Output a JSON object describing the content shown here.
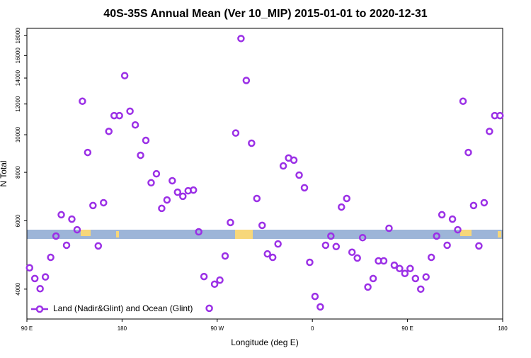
{
  "chart_data": {
    "type": "scatter",
    "title": "40S-35S Annual Mean (Ver 10_MIP)   2015-01-01 to 2020-12-31",
    "xlabel": "Longitude (deg E)",
    "ylabel": "N Total",
    "x": [
      92.5,
      97.5,
      102.5,
      107.5,
      112.5,
      117.5,
      122.5,
      127.5,
      132.5,
      137.5,
      142.5,
      147.5,
      152.5,
      157.5,
      162.5,
      167.5,
      172.5,
      177.5,
      182.5,
      187.5,
      192.5,
      197.5,
      202.5,
      207.5,
      212.5,
      217.5,
      222.5,
      227.5,
      232.5,
      237.5,
      242.5,
      247.5,
      252.5,
      257.5,
      262.5,
      267.5,
      272.5,
      277.5,
      282.5,
      287.5,
      292.5,
      297.5,
      302.5,
      307.5,
      312.5,
      317.5,
      322.5,
      327.5,
      332.5,
      337.5,
      342.5,
      347.5,
      352.5,
      357.5,
      362.5,
      367.5,
      372.5,
      377.5,
      382.5,
      387.5,
      392.5,
      397.5,
      402.5,
      407.5,
      412.5,
      417.5,
      422.5,
      427.5,
      432.5,
      437.5,
      442.5,
      447.5,
      452.5,
      457.5,
      462.5,
      467.5,
      472.5,
      477.5,
      482.5,
      487.5,
      492.5,
      497.5,
      502.5,
      507.5,
      512.5,
      517.5,
      522.5,
      527.5,
      532.5,
      537.5
    ],
    "series": [
      {
        "name": "Land (Nadir&Glint) and Ocean (Glint)",
        "color": "#9b30e6",
        "values": [
          4540,
          4260,
          4010,
          4300,
          4830,
          5480,
          6220,
          5190,
          6060,
          5690,
          12200,
          9000,
          6570,
          5170,
          6680,
          10200,
          11200,
          11200,
          14200,
          11500,
          10600,
          8850,
          9670,
          7520,
          7930,
          6460,
          6790,
          7610,
          7110,
          6940,
          7170,
          7200,
          5620,
          4310,
          3570,
          4120,
          4220,
          4870,
          5940,
          10100,
          17700,
          13800,
          9510,
          6850,
          5840,
          4930,
          4830,
          5230,
          8310,
          8710,
          8600,
          7870,
          7300,
          4690,
          3830,
          3600,
          5190,
          5480,
          5150,
          6510,
          6850,
          4980,
          4810,
          5430,
          4050,
          4260,
          4730,
          4730,
          5740,
          4610,
          4520,
          4390,
          4520,
          4260,
          4000,
          4300,
          4830,
          5480,
          6220,
          5190,
          6060,
          5690,
          12200,
          9000,
          6570,
          5170,
          6680,
          10200,
          11200,
          11200
        ]
      }
    ],
    "xlim": [
      90,
      540
    ],
    "xticks": [
      {
        "value": 90,
        "label": "90 E"
      },
      {
        "value": 180,
        "label": "180"
      },
      {
        "value": 270,
        "label": "90 W"
      },
      {
        "value": 360,
        "label": "0"
      },
      {
        "value": 450,
        "label": "90 E"
      },
      {
        "value": 540,
        "label": "180"
      }
    ],
    "ylim": [
      3350,
      18800
    ],
    "yscale": "log",
    "yticks": [
      4000,
      6000,
      8000,
      10000,
      12000,
      14000,
      16000,
      18000
    ],
    "legend": "lower left"
  }
}
